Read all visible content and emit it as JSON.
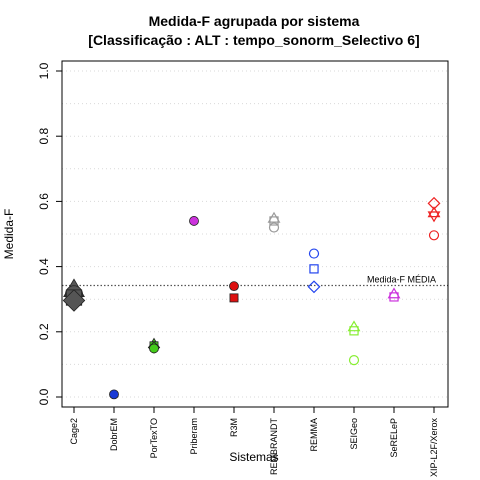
{
  "chart_data": {
    "type": "scatter",
    "title": "Medida-F agrupada por sistema",
    "subtitle": "[Classificação : ALT : tempo_sonorm_Selectivo 6]",
    "xlabel": "Sistemas",
    "ylabel": "Medida-F",
    "ylim": [
      0.0,
      1.0
    ],
    "yticks": [
      0.0,
      0.2,
      0.4,
      0.6,
      0.8,
      1.0
    ],
    "ytick_labels": [
      "0.0",
      "0.2",
      "0.4",
      "0.6",
      "0.8",
      "1.0"
    ],
    "grid": true,
    "categories": [
      "Cage2",
      "DobrEM",
      "PorTexTO",
      "Priberam",
      "R3M",
      "REMBRANDT",
      "REMMA",
      "SEIGeo",
      "SeRELeP",
      "XIP-L2F/Xerox"
    ],
    "reference_line": {
      "label": "Medida-F MÉDIA",
      "value": 0.342
    },
    "points": [
      {
        "category": "Cage2",
        "y": 0.33,
        "shape": "triangle",
        "color": "#555555",
        "filled": true
      },
      {
        "category": "Cage2",
        "y": 0.315,
        "shape": "circle",
        "color": "#555555",
        "filled": true
      },
      {
        "category": "Cage2",
        "y": 0.305,
        "shape": "square",
        "color": "#555555",
        "filled": true
      },
      {
        "category": "Cage2",
        "y": 0.296,
        "shape": "diamond",
        "color": "#555555",
        "filled": true
      },
      {
        "category": "DobrEM",
        "y": 0.008,
        "shape": "circle",
        "color": "#1a3ad6",
        "filled": true
      },
      {
        "category": "PorTexTO",
        "y": 0.163,
        "shape": "triangle",
        "color": "#44cc1a",
        "filled": true
      },
      {
        "category": "PorTexTO",
        "y": 0.157,
        "shape": "square",
        "color": "#44cc1a",
        "filled": true
      },
      {
        "category": "PorTexTO",
        "y": 0.152,
        "shape": "diamond",
        "color": "#44cc1a",
        "filled": true
      },
      {
        "category": "PorTexTO",
        "y": 0.149,
        "shape": "circle",
        "color": "#44cc1a",
        "filled": true
      },
      {
        "category": "Priberam",
        "y": 0.54,
        "shape": "circle",
        "color": "#cc33dd",
        "filled": true
      },
      {
        "category": "R3M",
        "y": 0.34,
        "shape": "circle",
        "color": "#dd1111",
        "filled": true
      },
      {
        "category": "R3M",
        "y": 0.304,
        "shape": "square",
        "color": "#dd1111",
        "filled": true
      },
      {
        "category": "REMBRANDT",
        "y": 0.548,
        "shape": "triangle",
        "color": "#9a9a9a",
        "filled": false
      },
      {
        "category": "REMBRANDT",
        "y": 0.54,
        "shape": "square",
        "color": "#9a9a9a",
        "filled": false
      },
      {
        "category": "REMBRANDT",
        "y": 0.52,
        "shape": "circle",
        "color": "#9a9a9a",
        "filled": false
      },
      {
        "category": "REMMA",
        "y": 0.44,
        "shape": "circle",
        "color": "#2244ee",
        "filled": false
      },
      {
        "category": "REMMA",
        "y": 0.393,
        "shape": "square",
        "color": "#2244ee",
        "filled": false
      },
      {
        "category": "REMMA",
        "y": 0.338,
        "shape": "diamond",
        "color": "#2244ee",
        "filled": false
      },
      {
        "category": "SEIGeo",
        "y": 0.215,
        "shape": "triangle",
        "color": "#88ee33",
        "filled": false
      },
      {
        "category": "SEIGeo",
        "y": 0.203,
        "shape": "square",
        "color": "#88ee33",
        "filled": false
      },
      {
        "category": "SEIGeo",
        "y": 0.113,
        "shape": "circle",
        "color": "#88ee33",
        "filled": false
      },
      {
        "category": "SeRELeP",
        "y": 0.316,
        "shape": "triangle",
        "color": "#cc33dd",
        "filled": false
      },
      {
        "category": "SeRELeP",
        "y": 0.307,
        "shape": "square",
        "color": "#cc33dd",
        "filled": false
      },
      {
        "category": "XIP-L2F/Xerox",
        "y": 0.594,
        "shape": "diamond",
        "color": "#ee2222",
        "filled": false
      },
      {
        "category": "XIP-L2F/Xerox",
        "y": 0.565,
        "shape": "triangle",
        "color": "#ee2222",
        "filled": false
      },
      {
        "category": "XIP-L2F/Xerox",
        "y": 0.556,
        "shape": "triangle-down",
        "color": "#ee2222",
        "filled": false
      },
      {
        "category": "XIP-L2F/Xerox",
        "y": 0.496,
        "shape": "circle",
        "color": "#ee2222",
        "filled": false
      }
    ]
  }
}
